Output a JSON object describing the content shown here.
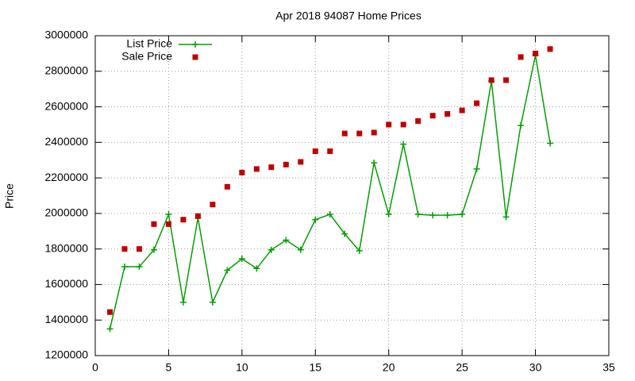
{
  "chart_data": {
    "type": "line",
    "title": "Apr 2018 94087 Home Prices",
    "y_label": "Price",
    "x": [
      1,
      2,
      3,
      4,
      5,
      6,
      7,
      8,
      9,
      10,
      11,
      12,
      13,
      14,
      15,
      16,
      17,
      18,
      19,
      20,
      21,
      22,
      23,
      24,
      25,
      26,
      27,
      28,
      29,
      30,
      31
    ],
    "series": [
      {
        "name": "List Price",
        "color": "#00a000",
        "style": "linespoints",
        "values": [
          1350000,
          1700000,
          1700000,
          1795000,
          1995000,
          1500000,
          1975000,
          1500000,
          1680000,
          1745000,
          1690000,
          1795000,
          1850000,
          1795000,
          1965000,
          1995000,
          1885000,
          1790000,
          2285000,
          1995000,
          2390000,
          1995000,
          1990000,
          1990000,
          1995000,
          2250000,
          2745000,
          1980000,
          2495000,
          2890000,
          2395000
        ]
      },
      {
        "name": "Sale Price",
        "color": "#c00000",
        "style": "points",
        "values": [
          1445000,
          1800000,
          1800000,
          1940000,
          1940000,
          1965000,
          1985000,
          2050000,
          2150000,
          2230000,
          2250000,
          2260000,
          2275000,
          2290000,
          2350000,
          2350000,
          2450000,
          2450000,
          2455000,
          2500000,
          2500000,
          2520000,
          2550000,
          2560000,
          2580000,
          2620000,
          2750000,
          2750000,
          2880000,
          2900000,
          2925000
        ]
      }
    ],
    "xlim": [
      0,
      35
    ],
    "xticks": [
      0,
      5,
      10,
      15,
      20,
      25,
      30,
      35
    ],
    "ylim": [
      1200000,
      3000000
    ],
    "yticks": [
      1200000,
      1400000,
      1600000,
      1800000,
      2000000,
      2200000,
      2400000,
      2600000,
      2800000,
      3000000
    ],
    "grid": true,
    "legend": "top-left"
  }
}
